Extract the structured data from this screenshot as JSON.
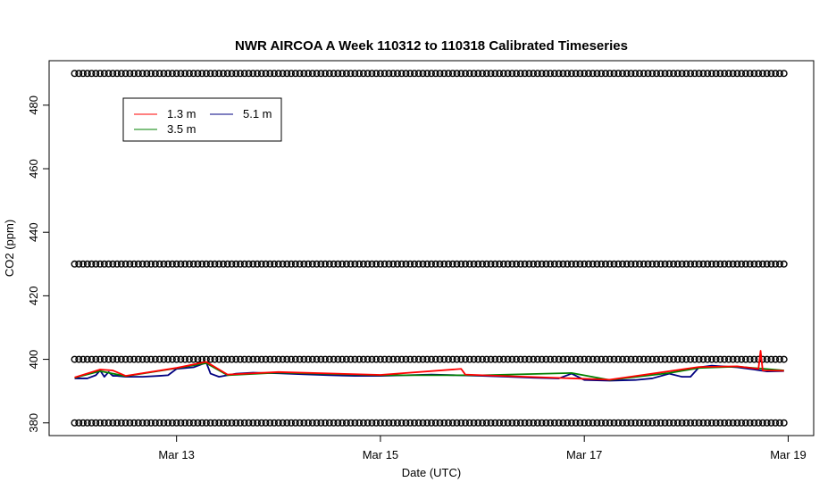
{
  "chart_data": {
    "type": "line",
    "title": "NWR AIRCOA A  Week 110312 to 110318  Calibrated Timeseries",
    "xlabel": "Date (UTC)",
    "ylabel": "CO2 (ppm)",
    "xlim": [
      "2011-03-11 18:00",
      "2011-03-19 06:00"
    ],
    "ylim": [
      376,
      494
    ],
    "x_ticks": [
      {
        "x": "2011-03-13 00:00",
        "label": "Mar 13"
      },
      {
        "x": "2011-03-15 00:00",
        "label": "Mar 15"
      },
      {
        "x": "2011-03-17 00:00",
        "label": "Mar 17"
      },
      {
        "x": "2011-03-19 00:00",
        "label": "Mar 19"
      }
    ],
    "y_ticks": [
      380,
      400,
      420,
      440,
      460,
      480
    ],
    "grid": false,
    "legend": {
      "position": "top-left",
      "entries": [
        {
          "label": "1.3 m",
          "color": "#ff0000"
        },
        {
          "label": "5.1 m",
          "color": "#000080"
        },
        {
          "label": "3.5 m",
          "color": "#008000"
        }
      ]
    },
    "calibration_markers": {
      "marker": "open-circle",
      "levels": [
        380,
        400,
        430,
        490
      ],
      "x_start": "2011-03-12 00:00",
      "x_end": "2011-03-18 23:00",
      "interval_hours": 1
    },
    "series": [
      {
        "name": "5.1 m",
        "color": "#000080",
        "x": [
          "2011-03-12 00:00",
          "2011-03-12 03:00",
          "2011-03-12 05:00",
          "2011-03-12 06:00",
          "2011-03-12 07:00",
          "2011-03-12 08:00",
          "2011-03-12 09:00",
          "2011-03-12 10:00",
          "2011-03-12 12:00",
          "2011-03-12 16:00",
          "2011-03-12 20:00",
          "2011-03-12 22:00",
          "2011-03-13 00:00",
          "2011-03-13 04:00",
          "2011-03-13 07:00",
          "2011-03-13 08:00",
          "2011-03-13 10:00",
          "2011-03-13 14:00",
          "2011-03-13 18:00",
          "2011-03-14 00:00",
          "2011-03-14 06:00",
          "2011-03-14 12:00",
          "2011-03-14 18:00",
          "2011-03-15 00:00",
          "2011-03-15 06:00",
          "2011-03-15 12:00",
          "2011-03-15 18:00",
          "2011-03-16 00:00",
          "2011-03-16 06:00",
          "2011-03-16 12:00",
          "2011-03-16 18:00",
          "2011-03-16 21:00",
          "2011-03-17 00:00",
          "2011-03-17 06:00",
          "2011-03-17 12:00",
          "2011-03-17 16:00",
          "2011-03-17 20:00",
          "2011-03-17 23:00",
          "2011-03-18 01:00",
          "2011-03-18 03:00",
          "2011-03-18 06:00",
          "2011-03-18 12:00",
          "2011-03-18 16:00",
          "2011-03-18 19:00",
          "2011-03-18 23:00"
        ],
        "values": [
          394,
          394,
          395,
          396.5,
          394.5,
          396,
          394.8,
          394.8,
          394.5,
          394.5,
          394.8,
          395,
          397,
          397.5,
          399,
          395.5,
          394.5,
          395.5,
          395.8,
          395.6,
          395.3,
          395.0,
          394.8,
          394.8,
          395.0,
          395.2,
          395.0,
          394.8,
          394.5,
          394.2,
          394.0,
          395.5,
          393.5,
          393.3,
          393.5,
          394.0,
          395.5,
          394.5,
          394.5,
          397.5,
          398,
          397.5,
          396.8,
          396.2,
          396.3
        ]
      },
      {
        "name": "3.5 m",
        "color": "#008000",
        "x": [
          "2011-03-12 00:00",
          "2011-03-12 06:00",
          "2011-03-12 12:00",
          "2011-03-13 00:00",
          "2011-03-13 07:00",
          "2011-03-13 12:00",
          "2011-03-14 00:00",
          "2011-03-15 00:00",
          "2011-03-16 00:00",
          "2011-03-16 21:00",
          "2011-03-17 06:00",
          "2011-03-17 20:00",
          "2011-03-18 03:00",
          "2011-03-18 12:00",
          "2011-03-18 23:00"
        ],
        "values": [
          394.2,
          396.3,
          394.7,
          397.2,
          398.8,
          395.0,
          395.8,
          395.0,
          395.0,
          395.7,
          393.5,
          395.7,
          397.3,
          397.7,
          396.5
        ]
      },
      {
        "name": "1.3 m",
        "color": "#ff0000",
        "x": [
          "2011-03-12 00:00",
          "2011-03-12 06:00",
          "2011-03-12 09:00",
          "2011-03-12 12:00",
          "2011-03-13 00:00",
          "2011-03-13 07:00",
          "2011-03-13 12:00",
          "2011-03-14 00:00",
          "2011-03-15 00:00",
          "2011-03-15 19:00",
          "2011-03-15 20:00",
          "2011-03-16 00:00",
          "2011-03-17 06:00",
          "2011-03-18 03:00",
          "2011-03-18 12:00",
          "2011-03-18 17:00",
          "2011-03-18 17:30",
          "2011-03-18 18:00",
          "2011-03-18 23:00"
        ],
        "values": [
          394.3,
          396.8,
          396.5,
          394.8,
          397.3,
          399.2,
          395.2,
          396.0,
          395.1,
          397.0,
          395.2,
          395.0,
          393.6,
          397.6,
          397.8,
          397.0,
          402.7,
          396.5,
          396.4
        ]
      }
    ]
  }
}
